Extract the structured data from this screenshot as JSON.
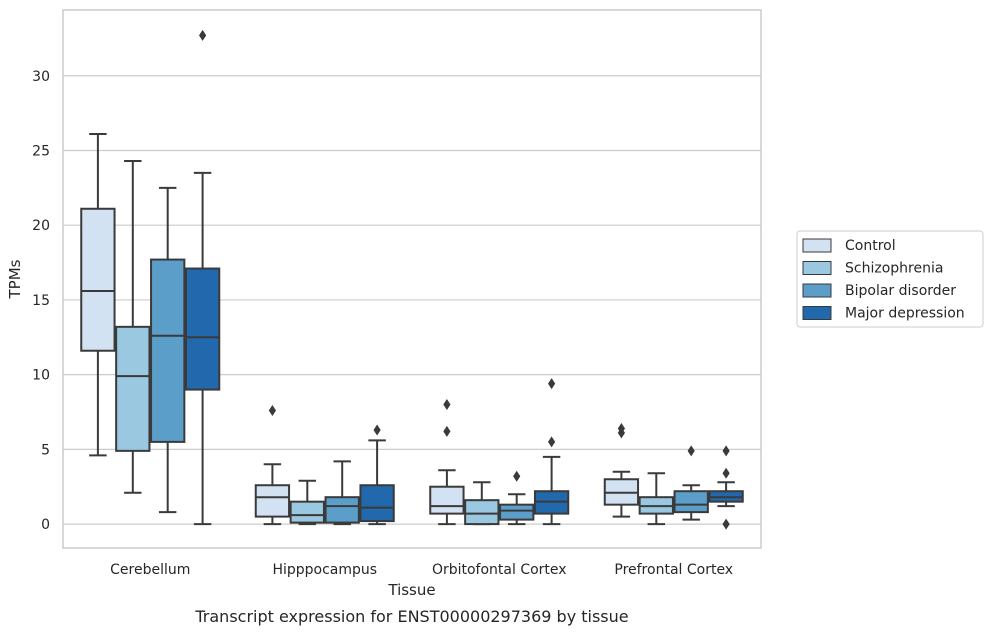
{
  "chart_data": {
    "type": "box",
    "title": "",
    "caption": "Transcript expression for ENST00000297369 by tissue",
    "xlabel": "Tissue",
    "ylabel": "TPMs",
    "ylim": [
      -1.6,
      34.4
    ],
    "yticks": [
      0,
      5,
      10,
      15,
      20,
      25,
      30
    ],
    "grid": "horizontal",
    "legend_position": "right",
    "categories": [
      "Cerebellum",
      "Hipppocampus",
      "Orbitofontal Cortex",
      "Prefrontal Cortex"
    ],
    "series": [
      {
        "name": "Control",
        "color": "#d2e2f2",
        "boxes": [
          {
            "whisker_low": 4.6,
            "q1": 11.6,
            "median": 15.6,
            "q3": 21.1,
            "whisker_high": 26.1,
            "outliers": []
          },
          {
            "whisker_low": 0.0,
            "q1": 0.5,
            "median": 1.8,
            "q3": 2.6,
            "whisker_high": 4.0,
            "outliers": [
              7.6
            ]
          },
          {
            "whisker_low": 0.0,
            "q1": 0.7,
            "median": 1.2,
            "q3": 2.5,
            "whisker_high": 3.6,
            "outliers": [
              6.2,
              8.0
            ]
          },
          {
            "whisker_low": 0.5,
            "q1": 1.3,
            "median": 2.1,
            "q3": 3.0,
            "whisker_high": 3.5,
            "outliers": [
              6.1,
              6.4
            ]
          }
        ]
      },
      {
        "name": "Schizophrenia",
        "color": "#9ac8e0",
        "boxes": [
          {
            "whisker_low": 2.1,
            "q1": 4.9,
            "median": 9.9,
            "q3": 13.2,
            "whisker_high": 24.3,
            "outliers": []
          },
          {
            "whisker_low": 0.0,
            "q1": 0.1,
            "median": 0.6,
            "q3": 1.5,
            "whisker_high": 2.9,
            "outliers": []
          },
          {
            "whisker_low": 0.0,
            "q1": 0.0,
            "median": 0.7,
            "q3": 1.6,
            "whisker_high": 2.8,
            "outliers": []
          },
          {
            "whisker_low": 0.0,
            "q1": 0.7,
            "median": 1.2,
            "q3": 1.8,
            "whisker_high": 3.4,
            "outliers": []
          }
        ]
      },
      {
        "name": "Bipolar disorder",
        "color": "#5a9ec9",
        "boxes": [
          {
            "whisker_low": 0.8,
            "q1": 5.5,
            "median": 12.6,
            "q3": 17.7,
            "whisker_high": 22.5,
            "outliers": []
          },
          {
            "whisker_low": 0.0,
            "q1": 0.1,
            "median": 1.2,
            "q3": 1.8,
            "whisker_high": 4.2,
            "outliers": []
          },
          {
            "whisker_low": 0.0,
            "q1": 0.3,
            "median": 0.9,
            "q3": 1.3,
            "whisker_high": 2.0,
            "outliers": [
              3.2
            ]
          },
          {
            "whisker_low": 0.3,
            "q1": 0.8,
            "median": 1.3,
            "q3": 2.2,
            "whisker_high": 2.6,
            "outliers": [
              4.9
            ]
          }
        ]
      },
      {
        "name": "Major depression",
        "color": "#2268ad",
        "boxes": [
          {
            "whisker_low": 0.0,
            "q1": 9.0,
            "median": 12.5,
            "q3": 17.1,
            "whisker_high": 23.5,
            "outliers": [
              32.7
            ]
          },
          {
            "whisker_low": 0.0,
            "q1": 0.2,
            "median": 1.1,
            "q3": 2.6,
            "whisker_high": 5.6,
            "outliers": [
              6.3
            ]
          },
          {
            "whisker_low": 0.0,
            "q1": 0.7,
            "median": 1.5,
            "q3": 2.2,
            "whisker_high": 4.5,
            "outliers": [
              5.5,
              9.4
            ]
          },
          {
            "whisker_low": 1.2,
            "q1": 1.5,
            "median": 1.8,
            "q3": 2.2,
            "whisker_high": 2.8,
            "outliers": [
              0.0,
              3.4,
              4.9
            ]
          }
        ]
      }
    ]
  }
}
